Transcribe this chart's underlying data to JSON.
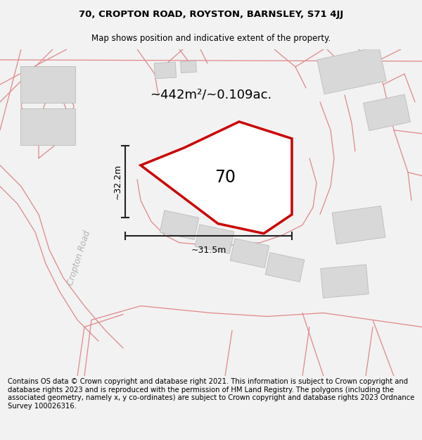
{
  "title_line1": "70, CROPTON ROAD, ROYSTON, BARNSLEY, S71 4JJ",
  "title_line2": "Map shows position and indicative extent of the property.",
  "area_text": "~442m²/~0.109ac.",
  "label_70": "70",
  "dim_height": "~32.2m",
  "dim_width": "~31.5m",
  "road_label": "Cropton Road",
  "footer_text": "Contains OS data © Crown copyright and database right 2021. This information is subject to Crown copyright and database rights 2023 and is reproduced with the permission of HM Land Registry. The polygons (including the associated geometry, namely x, y co-ordinates) are subject to Crown copyright and database rights 2023 Ordnance Survey 100026316.",
  "bg_color": "#f2f2f2",
  "map_bg": "#ffffff",
  "property_fill": "rgba(255,255,255,0.0)",
  "property_edge": "#cc0000",
  "buildings_fill": "#d8d8d8",
  "buildings_ec": "#bbbbbb",
  "road_line_color": "#e08888",
  "dim_line_color": "#222222",
  "title_fontsize": 9.5,
  "subtitle_fontsize": 8.5,
  "area_fontsize": 13,
  "label_fontsize": 17,
  "dim_fontsize": 9,
  "footer_fontsize": 7.2,
  "road_label_fontsize": 8.5
}
